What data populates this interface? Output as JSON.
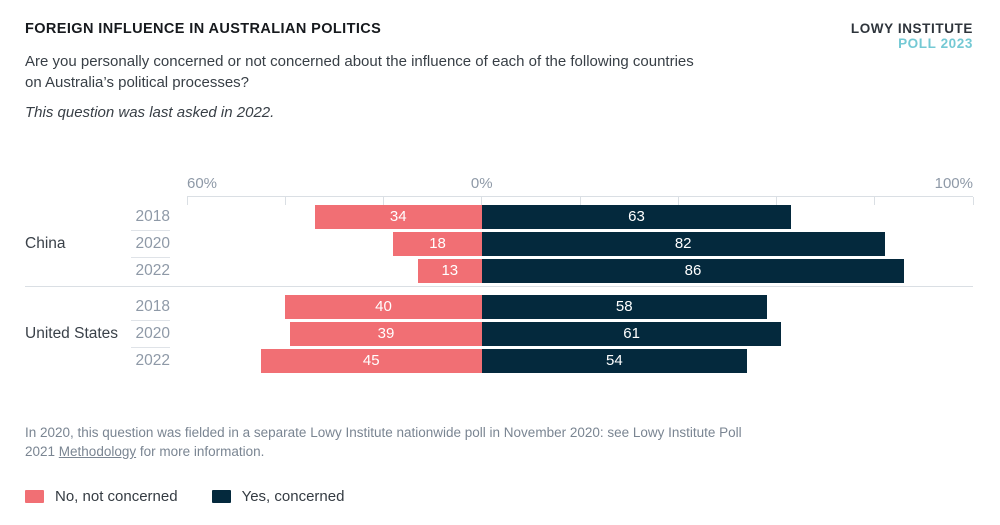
{
  "header": {
    "title": "FOREIGN INFLUENCE IN AUSTRALIAN POLITICS",
    "question": "Are you personally concerned or not concerned about the influence of each of the following countries on Australia’s political processes?",
    "note": "This question was last asked in 2022.",
    "brand_line1": "LOWY INSTITUTE",
    "brand_line2": "POLL 2023"
  },
  "chart_data": {
    "type": "bar",
    "orientation": "horizontal-diverging",
    "axis": {
      "min": -60,
      "max": 100,
      "ticks_percent": [
        -60,
        -40,
        -20,
        0,
        20,
        40,
        60,
        80,
        100
      ],
      "labels": [
        {
          "text": "60%",
          "pos": -60
        },
        {
          "text": "0%",
          "pos": 0
        },
        {
          "text": "100%",
          "pos": 100
        }
      ]
    },
    "series_meta": [
      {
        "key": "no",
        "name": "No, not concerned",
        "color": "#f16f74",
        "direction": "left"
      },
      {
        "key": "yes",
        "name": "Yes, concerned",
        "color": "#04293d",
        "direction": "right"
      }
    ],
    "groups": [
      {
        "label": "China",
        "rows": [
          {
            "year": "2018",
            "no": 34,
            "yes": 63
          },
          {
            "year": "2020",
            "no": 18,
            "yes": 82
          },
          {
            "year": "2022",
            "no": 13,
            "yes": 86
          }
        ]
      },
      {
        "label": "United States",
        "rows": [
          {
            "year": "2018",
            "no": 40,
            "yes": 58
          },
          {
            "year": "2020",
            "no": 39,
            "yes": 61
          },
          {
            "year": "2022",
            "no": 45,
            "yes": 54
          }
        ]
      }
    ]
  },
  "footnote": {
    "text_before": "In 2020, this question was fielded in a separate Lowy Institute nationwide poll in November 2020: see Lowy Institute Poll 2021 ",
    "link_text": "Methodology",
    "text_after": " for more information."
  },
  "legend": [
    {
      "label": "No, not concerned",
      "color": "#f16f74"
    },
    {
      "label": "Yes, concerned",
      "color": "#04293d"
    }
  ]
}
